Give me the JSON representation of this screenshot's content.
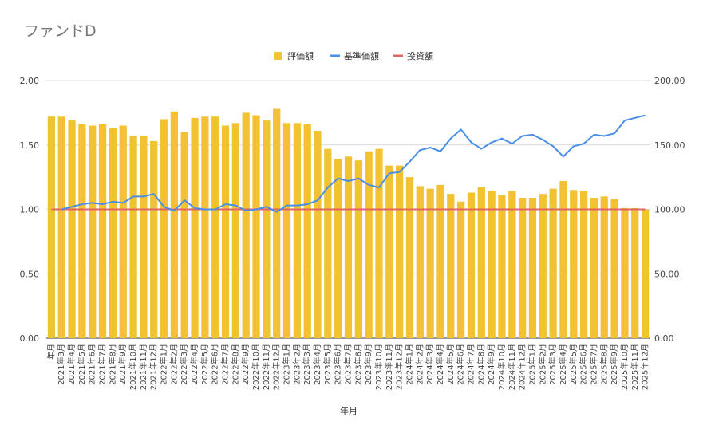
{
  "chart_data": {
    "type": "bar+line",
    "title": "ファンドD",
    "xlabel": "年月",
    "legend_position": "top-center",
    "grid": true,
    "y_left": {
      "range": [
        0,
        2.0
      ],
      "ticks": [
        "0.00",
        "0.50",
        "1.00",
        "1.50",
        "2.00"
      ]
    },
    "y_right": {
      "range": [
        0,
        200
      ],
      "ticks": [
        "0.00",
        "50.00",
        "100.00",
        "150.00",
        "200.00"
      ]
    },
    "categories": [
      "年月",
      "2021年3月",
      "2021年4月",
      "2021年5月",
      "2021年6月",
      "2021年7月",
      "2021年8月",
      "2021年9月",
      "2021年10月",
      "2021年11月",
      "2021年12月",
      "2022年1月",
      "2022年2月",
      "2022年3月",
      "2022年4月",
      "2022年5月",
      "2022年6月",
      "2022年7月",
      "2022年8月",
      "2022年9月",
      "2022年10月",
      "2022年11月",
      "2022年12月",
      "2023年1月",
      "2023年2月",
      "2023年3月",
      "2023年4月",
      "2023年5月",
      "2023年6月",
      "2023年7月",
      "2023年8月",
      "2023年9月",
      "2023年10月",
      "2023年11月",
      "2023年12月",
      "2024年1月",
      "2024年2月",
      "2024年3月",
      "2024年4月",
      "2024年5月",
      "2024年6月",
      "2024年7月",
      "2024年8月",
      "2024年9月",
      "2024年10月",
      "2024年11月",
      "2024年12月",
      "2025年1月",
      "2025年2月",
      "2025年3月",
      "2025年4月",
      "2025年5月",
      "2025年6月",
      "2025年7月",
      "2025年8月",
      "2025年9月",
      "2025年10月",
      "2025年11月",
      "2025年12月"
    ],
    "series": [
      {
        "name": "評価額",
        "type": "bar",
        "axis": "left",
        "color": "#f2c232",
        "values": [
          1.72,
          1.72,
          1.69,
          1.66,
          1.65,
          1.66,
          1.63,
          1.65,
          1.57,
          1.57,
          1.53,
          1.7,
          1.76,
          1.6,
          1.71,
          1.72,
          1.72,
          1.65,
          1.67,
          1.75,
          1.73,
          1.69,
          1.78,
          1.67,
          1.67,
          1.66,
          1.61,
          1.47,
          1.39,
          1.41,
          1.38,
          1.45,
          1.47,
          1.34,
          1.34,
          1.25,
          1.18,
          1.16,
          1.19,
          1.12,
          1.06,
          1.13,
          1.17,
          1.14,
          1.11,
          1.14,
          1.09,
          1.09,
          1.12,
          1.16,
          1.22,
          1.15,
          1.14,
          1.09,
          1.1,
          1.08,
          1.01,
          1.01,
          1.0
        ]
      },
      {
        "name": "基準価額",
        "type": "line",
        "axis": "right",
        "color": "#4a8ee8",
        "values": [
          null,
          100,
          102,
          104,
          105,
          104,
          106,
          105,
          110,
          110,
          112,
          102,
          99,
          107,
          101,
          100,
          100,
          104,
          103,
          99,
          100,
          102,
          98,
          103,
          103,
          104,
          107,
          117,
          124,
          122,
          124,
          119,
          117,
          128,
          129,
          137,
          146,
          148,
          145,
          155,
          162,
          152,
          147,
          152,
          155,
          151,
          157,
          158,
          154,
          149,
          141,
          149,
          151,
          158,
          157,
          159,
          169,
          171,
          173
        ]
      },
      {
        "name": "投資額",
        "type": "line",
        "axis": "right",
        "color": "#e06666",
        "values": [
          100,
          100,
          100,
          100,
          100,
          100,
          100,
          100,
          100,
          100,
          100,
          100,
          100,
          100,
          100,
          100,
          100,
          100,
          100,
          100,
          100,
          100,
          100,
          100,
          100,
          100,
          100,
          100,
          100,
          100,
          100,
          100,
          100,
          100,
          100,
          100,
          100,
          100,
          100,
          100,
          100,
          100,
          100,
          100,
          100,
          100,
          100,
          100,
          100,
          100,
          100,
          100,
          100,
          100,
          100,
          100,
          100,
          100,
          100
        ]
      }
    ]
  }
}
